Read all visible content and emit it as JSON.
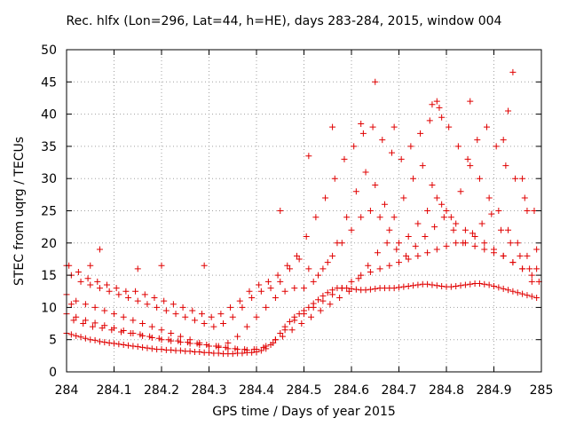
{
  "chart_data": {
    "type": "scatter",
    "title": "Rec. hlfx (Lon=296, Lat=44, h=HE), days 283-284, 2015, window 004",
    "xlabel": "GPS time / Days of year 2015",
    "ylabel": "STEC from uqrg / TECUs",
    "xlim": [
      284,
      285
    ],
    "ylim": [
      0,
      50
    ],
    "xticks": [
      "284",
      "284.1",
      "284.2",
      "284.3",
      "284.4",
      "284.5",
      "284.6",
      "284.7",
      "284.8",
      "284.9",
      "285"
    ],
    "yticks": [
      "0",
      "5",
      "10",
      "15",
      "20",
      "25",
      "30",
      "35",
      "40",
      "45",
      "50"
    ],
    "grid": true,
    "marker": "+",
    "color": "#e00000",
    "series": [
      {
        "x": [
          284.0,
          284.01,
          284.02,
          284.03,
          284.04,
          284.05,
          284.06,
          284.07,
          284.08,
          284.09,
          284.1,
          284.11,
          284.12,
          284.13,
          284.14,
          284.15,
          284.16,
          284.17,
          284.18,
          284.19,
          284.2,
          284.21,
          284.22,
          284.23,
          284.24,
          284.25,
          284.26,
          284.27,
          284.28,
          284.29,
          284.3,
          284.31,
          284.32,
          284.33,
          284.34,
          284.35,
          284.36,
          284.37,
          284.38,
          284.39,
          284.4,
          284.41,
          284.42,
          284.43,
          284.44,
          284.45,
          284.46,
          284.47,
          284.48,
          284.49,
          284.5,
          284.51,
          284.52,
          284.53,
          284.54,
          284.55,
          284.56,
          284.57,
          284.58,
          284.59,
          284.6,
          284.61,
          284.62,
          284.63,
          284.64,
          284.65,
          284.66,
          284.67,
          284.68,
          284.69,
          284.7,
          284.71,
          284.72,
          284.73,
          284.74,
          284.75,
          284.76,
          284.77,
          284.78,
          284.79,
          284.8,
          284.81,
          284.82,
          284.83,
          284.84,
          284.85,
          284.86,
          284.87,
          284.88,
          284.89,
          284.9,
          284.91,
          284.92,
          284.93,
          284.94,
          284.95,
          284.96,
          284.97,
          284.98,
          284.99
        ],
        "y": [
          6.0,
          5.8,
          5.6,
          5.4,
          5.2,
          5.0,
          4.9,
          4.7,
          4.6,
          4.5,
          4.4,
          4.3,
          4.2,
          4.1,
          4.0,
          3.9,
          3.8,
          3.7,
          3.6,
          3.5,
          3.5,
          3.4,
          3.4,
          3.3,
          3.3,
          3.2,
          3.2,
          3.1,
          3.1,
          3.0,
          3.0,
          2.9,
          2.9,
          2.8,
          2.8,
          2.8,
          2.9,
          2.9,
          3.0,
          3.0,
          3.1,
          3.3,
          3.6,
          4.2,
          5.0,
          6.0,
          7.0,
          7.8,
          8.5,
          9.0,
          9.5,
          10.0,
          10.6,
          11.2,
          11.8,
          12.3,
          12.7,
          13.0,
          13.0,
          13.0,
          12.9,
          12.8,
          12.7,
          12.7,
          12.8,
          12.9,
          13.0,
          13.0,
          13.0,
          13.0,
          13.1,
          13.2,
          13.3,
          13.4,
          13.5,
          13.6,
          13.6,
          13.5,
          13.4,
          13.3,
          13.2,
          13.2,
          13.3,
          13.4,
          13.5,
          13.6,
          13.7,
          13.7,
          13.6,
          13.5,
          13.3,
          13.1,
          12.9,
          12.7,
          12.5,
          12.3,
          12.1,
          11.9,
          11.7,
          11.5
        ]
      },
      {
        "x": [
          284.0,
          284.02,
          284.04,
          284.06,
          284.08,
          284.1,
          284.12,
          284.14,
          284.16,
          284.18,
          284.2,
          284.22,
          284.24,
          284.26,
          284.28,
          284.3,
          284.32,
          284.34,
          284.36,
          284.38,
          284.4,
          284.42,
          284.44,
          284.46,
          284.48,
          284.5,
          284.52,
          284.54,
          284.56,
          284.58,
          284.6,
          284.62,
          284.64,
          284.66,
          284.68,
          284.7,
          284.72,
          284.74,
          284.76,
          284.78,
          284.8,
          284.82,
          284.84,
          284.86,
          284.88,
          284.9,
          284.92,
          284.94,
          284.96,
          284.98
        ],
        "y": [
          9.0,
          8.5,
          8.0,
          7.6,
          7.2,
          6.8,
          6.4,
          6.0,
          5.6,
          5.3,
          5.0,
          4.8,
          4.6,
          4.4,
          4.2,
          4.0,
          3.8,
          3.6,
          3.5,
          3.4,
          3.5,
          4.0,
          5.0,
          6.5,
          8.0,
          9.0,
          10.0,
          11.0,
          12.0,
          13.0,
          14.0,
          15.0,
          15.5,
          16.0,
          16.5,
          17.0,
          17.5,
          18.0,
          18.5,
          19.0,
          19.5,
          20.0,
          20.0,
          19.5,
          19.0,
          18.5,
          18.0,
          17.0,
          16.0,
          15.0
        ]
      },
      {
        "x": [
          284.0,
          284.02,
          284.04,
          284.06,
          284.08,
          284.1,
          284.12,
          284.14,
          284.16,
          284.18,
          284.2,
          284.22,
          284.24,
          284.26,
          284.28,
          284.3,
          284.32,
          284.34,
          284.36,
          284.38,
          284.4,
          284.42,
          284.44,
          284.46,
          284.48,
          284.5,
          284.52,
          284.54,
          284.56,
          284.58,
          284.6,
          284.62,
          284.64,
          284.66,
          284.68,
          284.7,
          284.72,
          284.74,
          284.76,
          284.78,
          284.8,
          284.82,
          284.84,
          284.86,
          284.88,
          284.9,
          284.92,
          284.94,
          284.96,
          284.98
        ],
        "y": [
          12.0,
          11.0,
          10.5,
          10.0,
          9.5,
          9.0,
          8.5,
          8.0,
          7.5,
          7.0,
          6.5,
          6.0,
          5.5,
          5.0,
          4.5,
          4.0,
          4.0,
          4.5,
          5.5,
          7.0,
          8.5,
          10.0,
          11.5,
          12.5,
          13.0,
          13.0,
          14.0,
          16.0,
          18.0,
          20.0,
          22.0,
          24.0,
          25.0,
          24.0,
          22.0,
          20.0,
          21.0,
          23.0,
          25.0,
          27.0,
          25.0,
          23.0,
          22.0,
          21.0,
          20.0,
          19.0,
          18.0,
          17.0,
          16.0,
          14.0
        ]
      },
      {
        "x": [
          284.01,
          284.03,
          284.05,
          284.07,
          284.09,
          284.11,
          284.13,
          284.15,
          284.17,
          284.19,
          284.21,
          284.23,
          284.25,
          284.27,
          284.29,
          284.31,
          284.33,
          284.35,
          284.37,
          284.39,
          284.41,
          284.43,
          284.45,
          284.47,
          284.49,
          284.51,
          284.53,
          284.55,
          284.57,
          284.59,
          284.61,
          284.63,
          284.65,
          284.67,
          284.69,
          284.71,
          284.73,
          284.75,
          284.77,
          284.79,
          284.81,
          284.83,
          284.85,
          284.87,
          284.89,
          284.91,
          284.93,
          284.95,
          284.97,
          284.99
        ],
        "y": [
          15.0,
          14.0,
          13.5,
          13.0,
          12.5,
          12.0,
          11.5,
          11.0,
          10.5,
          10.0,
          9.5,
          9.0,
          8.5,
          8.0,
          7.5,
          7.0,
          7.5,
          8.5,
          10.0,
          11.5,
          12.5,
          13.0,
          14.0,
          16.0,
          17.5,
          16.0,
          15.0,
          17.0,
          20.0,
          24.0,
          28.0,
          31.0,
          29.0,
          26.0,
          24.0,
          27.0,
          30.0,
          32.0,
          29.0,
          26.0,
          24.0,
          28.0,
          32.0,
          30.0,
          27.0,
          25.0,
          22.0,
          20.0,
          18.0,
          16.0
        ]
      },
      {
        "x": [
          284.005,
          284.025,
          284.045,
          284.065,
          284.085,
          284.105,
          284.125,
          284.145,
          284.165,
          284.185,
          284.205,
          284.225,
          284.245,
          284.265,
          284.285,
          284.305,
          284.325,
          284.345,
          284.365,
          284.385,
          284.405,
          284.425,
          284.445,
          284.465,
          284.485,
          284.505,
          284.525,
          284.545,
          284.565,
          284.585,
          284.605,
          284.625,
          284.645,
          284.665,
          284.685,
          284.705,
          284.725,
          284.745,
          284.765,
          284.785,
          284.805,
          284.825,
          284.845,
          284.865,
          284.885,
          284.905,
          284.925,
          284.945,
          284.965,
          284.985
        ],
        "y": [
          16.5,
          15.5,
          14.5,
          14.0,
          13.5,
          13.0,
          12.5,
          12.5,
          12.0,
          11.5,
          11.0,
          10.5,
          10.0,
          9.5,
          9.0,
          8.5,
          9.0,
          10.0,
          11.0,
          12.5,
          13.5,
          14.0,
          15.0,
          16.5,
          18.0,
          21.0,
          24.0,
          27.0,
          30.0,
          33.0,
          35.0,
          37.0,
          38.0,
          36.0,
          34.0,
          33.0,
          35.0,
          37.0,
          39.0,
          41.0,
          38.0,
          35.0,
          33.0,
          36.0,
          38.0,
          35.0,
          32.0,
          30.0,
          27.0,
          25.0
        ]
      },
      {
        "x": [
          284.015,
          284.035,
          284.055,
          284.075,
          284.095,
          284.115,
          284.135,
          284.155,
          284.175,
          284.195,
          284.215,
          284.235,
          284.255,
          284.275,
          284.295,
          284.315,
          284.335,
          284.355,
          284.375,
          284.395,
          284.415,
          284.435,
          284.455,
          284.475,
          284.495,
          284.515,
          284.535,
          284.555,
          284.575,
          284.595,
          284.615,
          284.635,
          284.655,
          284.675,
          284.695,
          284.715,
          284.735,
          284.755,
          284.775,
          284.795,
          284.815,
          284.835,
          284.855,
          284.875,
          284.895,
          284.915,
          284.935,
          284.955,
          284.975,
          284.995
        ],
        "y": [
          8.0,
          7.5,
          7.0,
          6.8,
          6.5,
          6.2,
          6.0,
          5.8,
          5.5,
          5.2,
          5.0,
          4.8,
          4.6,
          4.4,
          4.2,
          4.0,
          3.8,
          3.6,
          3.5,
          3.5,
          3.8,
          4.5,
          5.5,
          6.5,
          7.5,
          8.5,
          9.5,
          10.5,
          11.5,
          12.5,
          14.5,
          16.5,
          18.5,
          20.0,
          19.0,
          18.0,
          19.5,
          21.0,
          22.5,
          24.0,
          22.0,
          20.0,
          21.5,
          23.0,
          24.5,
          22.0,
          20.0,
          18.0,
          16.0,
          14.0
        ]
      },
      {
        "x": [
          284.0,
          284.01,
          284.05,
          284.07,
          284.15,
          284.2,
          284.29,
          284.45,
          284.51,
          284.56,
          284.62,
          284.65,
          284.69,
          284.77,
          284.78,
          284.79,
          284.85,
          284.92,
          284.93,
          284.94,
          284.96,
          284.97,
          284.99
        ],
        "y": [
          16.5,
          10.5,
          16.5,
          19.0,
          16.0,
          16.5,
          16.5,
          25.0,
          33.5,
          38.0,
          38.5,
          45.0,
          38.0,
          41.5,
          42.0,
          39.5,
          42.0,
          36.0,
          40.5,
          46.5,
          30.0,
          25.0,
          19.0
        ]
      }
    ]
  }
}
